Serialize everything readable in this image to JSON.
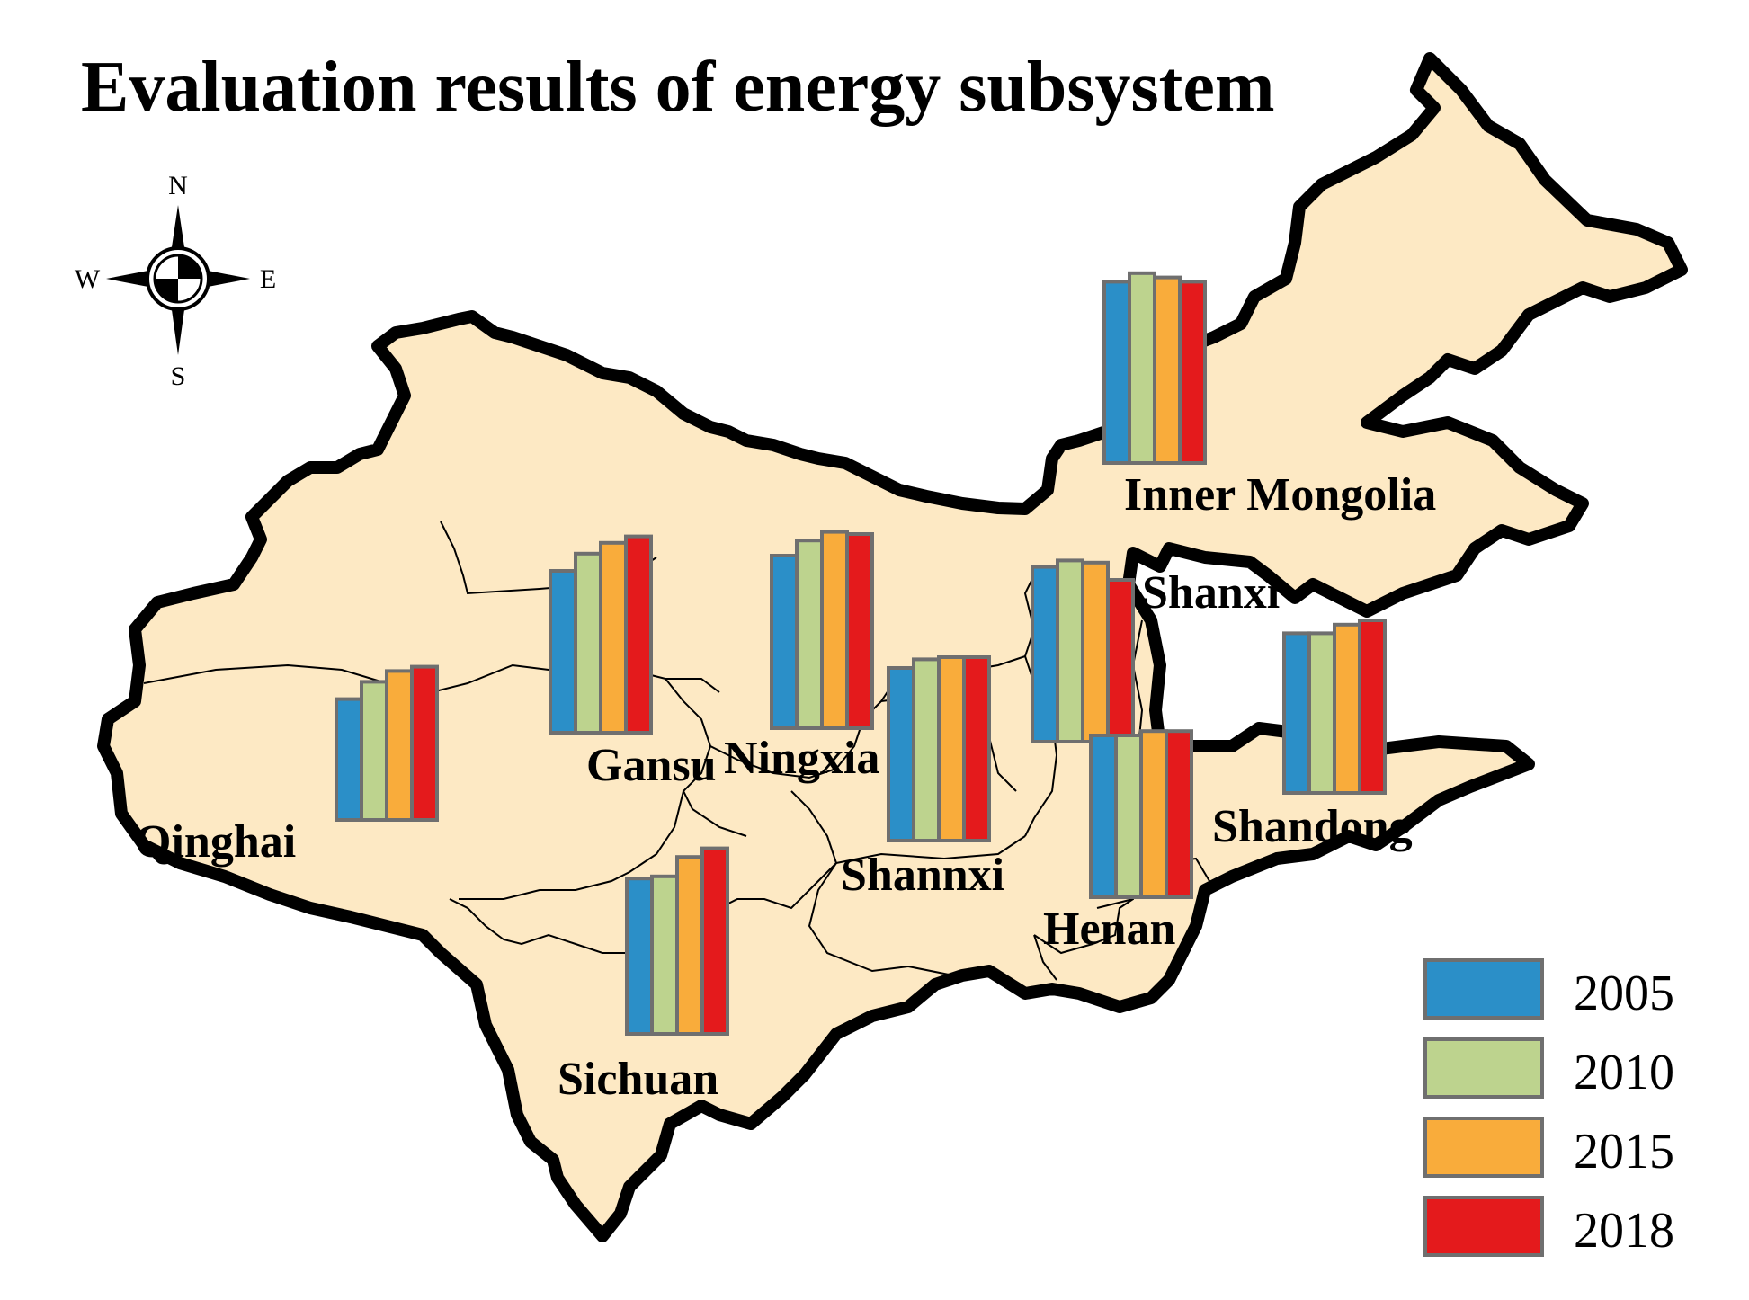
{
  "title": "Evaluation results of energy subsystem",
  "compass": {
    "n": "N",
    "s": "S",
    "e": "E",
    "w": "W"
  },
  "years": [
    "2005",
    "2010",
    "2015",
    "2018"
  ],
  "colors": {
    "2005": "#2b8fc8",
    "2010": "#bdd38e",
    "2015": "#f9ac3b",
    "2018": "#e41a1c",
    "land": "#fde9c4",
    "border": "#000000"
  },
  "chart_data": {
    "type": "bar",
    "note_unit": "relative bar height",
    "categories": [
      "2005",
      "2010",
      "2015",
      "2018"
    ],
    "regions": [
      {
        "name": "Inner Mongolia",
        "values": [
          0.84,
          0.88,
          0.86,
          0.84
        ]
      },
      {
        "name": "Gansu",
        "values": [
          0.75,
          0.83,
          0.88,
          0.91
        ]
      },
      {
        "name": "Qinghai",
        "values": [
          0.56,
          0.64,
          0.69,
          0.71
        ]
      },
      {
        "name": "Ningxia",
        "values": [
          0.8,
          0.87,
          0.91,
          0.9
        ]
      },
      {
        "name": "Shannxi",
        "values": [
          0.8,
          0.84,
          0.85,
          0.85
        ]
      },
      {
        "name": "Shanxi",
        "values": [
          0.81,
          0.84,
          0.83,
          0.75
        ]
      },
      {
        "name": "Henan",
        "values": [
          0.75,
          0.75,
          0.77,
          0.77
        ]
      },
      {
        "name": "Shandong",
        "values": [
          0.74,
          0.74,
          0.78,
          0.8
        ]
      },
      {
        "name": "Sichuan",
        "values": [
          0.72,
          0.73,
          0.82,
          0.86
        ]
      }
    ]
  }
}
